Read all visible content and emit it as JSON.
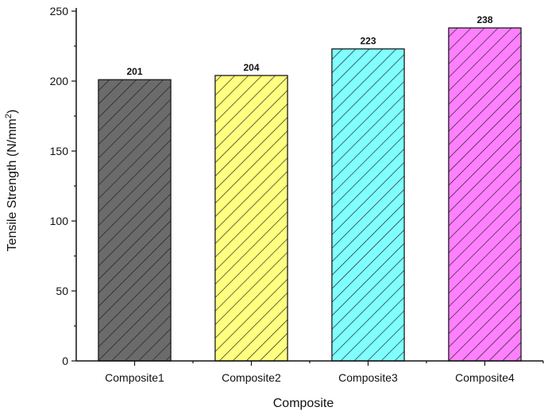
{
  "chart_data": {
    "type": "bar",
    "categories": [
      "Composite1",
      "Composite2",
      "Composite3",
      "Composite4"
    ],
    "values": [
      201,
      204,
      223,
      238
    ],
    "data_labels": [
      "201",
      "204",
      "223",
      "238"
    ],
    "xlabel": "Composite",
    "ylabel": {
      "text": "Tensile Strength (N/mm",
      "superscript": "2",
      "suffix": ")"
    },
    "ylim": [
      0,
      250
    ],
    "yticks": [
      0,
      50,
      100,
      150,
      200,
      250
    ],
    "ytick_labels": [
      "0",
      "50",
      "100",
      "150",
      "200",
      "250"
    ],
    "grid": false,
    "legend": "none",
    "bar_fills": [
      "#6b6b6b",
      "#ffff80",
      "#80ffff",
      "#ff80ff"
    ],
    "hatch": "diagonal",
    "hatch_color": "#1a1a1a",
    "edge_color": "#1a1a1a"
  }
}
